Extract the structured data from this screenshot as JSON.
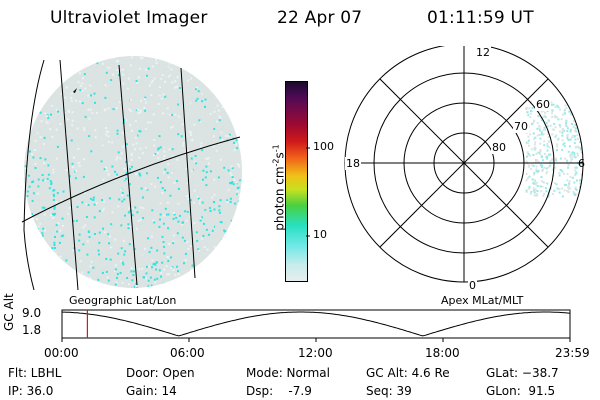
{
  "header": {
    "title": "Ultraviolet Imager",
    "date": "22 Apr 07",
    "time": "01:11:59 UT"
  },
  "colorbar": {
    "unit_label": "photon cm",
    "unit_exp1": "-2",
    "unit_mid": "s",
    "unit_exp2": "-1",
    "ticks": [
      "100",
      "10"
    ]
  },
  "left_panel": {
    "caption": "Geographic Lat/Lon"
  },
  "right_panel": {
    "caption": "Apex MLat/MLT",
    "mlt_labels": [
      "12",
      "18",
      "6",
      "0"
    ],
    "lat_labels": [
      "60",
      "70",
      "80"
    ]
  },
  "timeline": {
    "ylabel": "GC Alt",
    "yticks": [
      "9.0",
      "1.8"
    ],
    "xticks": [
      "00:00",
      "06:00",
      "12:00",
      "18:00",
      "23:59"
    ],
    "current_time_fraction": 0.05
  },
  "info": {
    "flt": "Flt: LBHL",
    "ip": "IP: 36.0",
    "door": "Door: Open",
    "gain": "Gain: 14",
    "mode": "Mode: Normal",
    "dsp": "Dsp:    -7.9",
    "gcalt": "GC Alt: 4.6 Re",
    "seq": "Seq: 39",
    "glat": "GLat: −38.7",
    "glon": "GLon:  91.5"
  },
  "colors": {
    "accent_cyan": "#2fe3e0",
    "haze": "#d4e4e2",
    "timeline_marker": "#d11a1a"
  }
}
